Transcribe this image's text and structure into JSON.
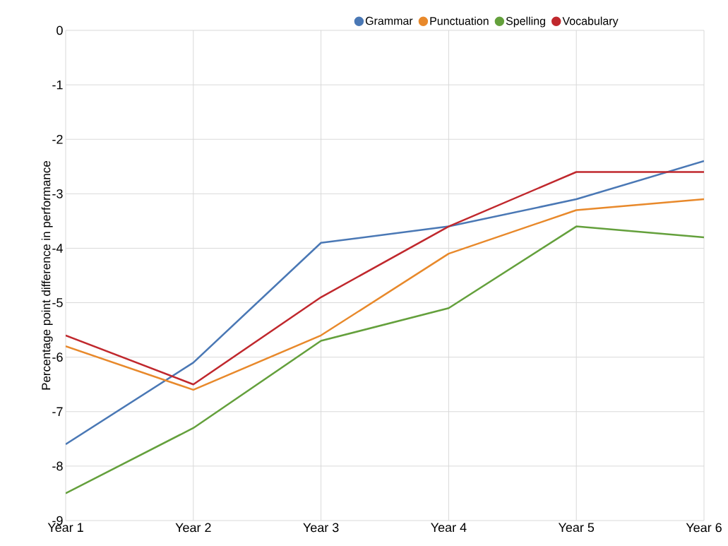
{
  "chart_data": {
    "type": "line",
    "ylabel": "Percentage point difference in performance",
    "categories": [
      "Year 1",
      "Year 2",
      "Year 3",
      "Year 4",
      "Year 5",
      "Year 6"
    ],
    "series": [
      {
        "name": "Grammar",
        "color": "#4a78b5",
        "values": [
          -7.6,
          -6.1,
          -3.9,
          -3.6,
          -3.1,
          -2.4
        ]
      },
      {
        "name": "Punctuation",
        "color": "#e8892b",
        "values": [
          -5.8,
          -6.6,
          -5.6,
          -4.1,
          -3.3,
          -3.1
        ]
      },
      {
        "name": "Spelling",
        "color": "#64a03c",
        "values": [
          -8.5,
          -7.3,
          -5.7,
          -5.1,
          -3.6,
          -3.8
        ]
      },
      {
        "name": "Vocabulary",
        "color": "#c0282d",
        "values": [
          -5.6,
          -6.5,
          -4.9,
          -3.6,
          -2.6,
          -2.6
        ]
      }
    ],
    "ylim": [
      -9,
      0
    ],
    "yticks": [
      0,
      -1,
      -2,
      -3,
      -4,
      -5,
      -6,
      -7,
      -8,
      -9
    ],
    "grid": true,
    "legend": "top"
  }
}
